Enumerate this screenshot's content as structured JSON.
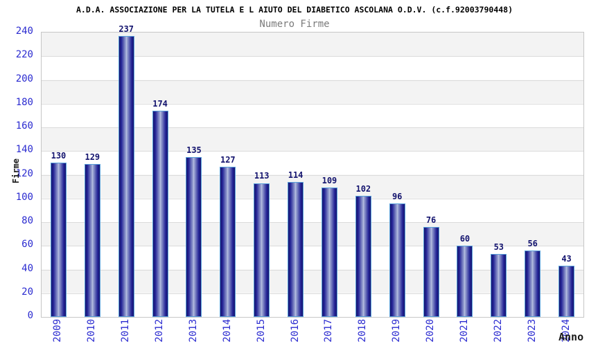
{
  "header": {
    "title": "A.D.A. ASSOCIAZIONE PER LA TUTELA E L AIUTO DEL DIABETICO ASCOLANA O.D.V. (c.f.92003790448)",
    "subtitle": "Numero Firme"
  },
  "chart_data": {
    "type": "bar",
    "title": "A.D.A. ASSOCIAZIONE PER LA TUTELA E L AIUTO DEL DIABETICO ASCOLANA O.D.V. (c.f.92003790448)",
    "subtitle": "Numero Firme",
    "categories": [
      "2009",
      "2010",
      "2011",
      "2012",
      "2013",
      "2014",
      "2015",
      "2016",
      "2017",
      "2018",
      "2019",
      "2020",
      "2021",
      "2022",
      "2023",
      "2024"
    ],
    "values": [
      130,
      129,
      237,
      174,
      135,
      127,
      113,
      114,
      109,
      102,
      96,
      76,
      60,
      53,
      56,
      43
    ],
    "xlabel": "Anno",
    "ylabel": "Firme",
    "ylim": [
      0,
      240
    ],
    "ytick_step": 20,
    "yticks": [
      0,
      20,
      40,
      60,
      80,
      100,
      120,
      140,
      160,
      180,
      200,
      220,
      240
    ],
    "grid": true,
    "legend_position": "none",
    "colors": {
      "bar_edge": "#16166e",
      "bar_center": "#bcc3e4",
      "bar_border": "#58a0da",
      "axis_tick_label": "#2b2bd0",
      "value_label": "#13136e",
      "band_gray": "#f3f3f3",
      "gridline": "#dbdbdb",
      "subtitle_gray": "#7b7b7b"
    }
  }
}
